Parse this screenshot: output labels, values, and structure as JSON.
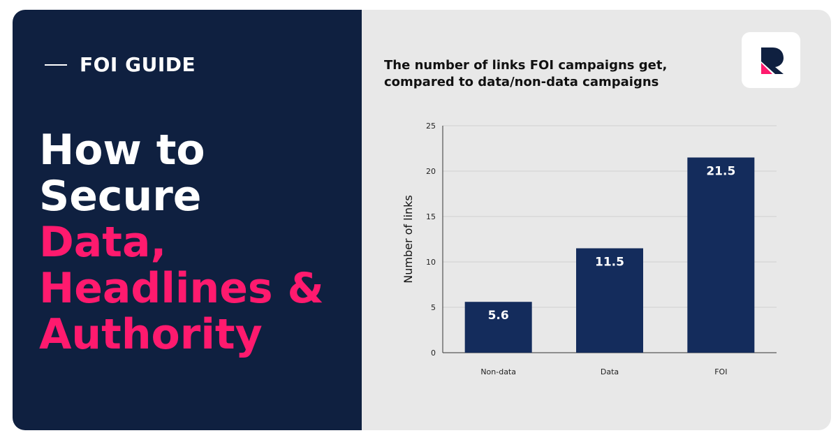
{
  "left_panel": {
    "eyebrow": "FOI GUIDE",
    "headline_white": [
      "How to",
      "Secure"
    ],
    "headline_pink": [
      "Data,",
      "Headlines &",
      "Authority"
    ]
  },
  "colors": {
    "navy": "#0f2040",
    "pink": "#ff1a6e",
    "bar": "#142c5c",
    "panel_bg": "#e8e8e8"
  },
  "logo": {
    "icon": "brand-r-logo-icon"
  },
  "chart_data": {
    "type": "bar",
    "title_lines": [
      "The number of links FOI campaigns get,",
      "compared to data/non-data campaigns"
    ],
    "xlabel": "",
    "ylabel": "Number of links",
    "categories": [
      "Non-data",
      "Data",
      "FOI"
    ],
    "values": [
      5.6,
      11.5,
      21.5
    ],
    "value_labels": [
      "5.6",
      "11.5",
      "21.5"
    ],
    "ylim": [
      0,
      25
    ],
    "yticks": [
      0,
      5,
      10,
      15,
      20,
      25
    ],
    "grid": true
  }
}
